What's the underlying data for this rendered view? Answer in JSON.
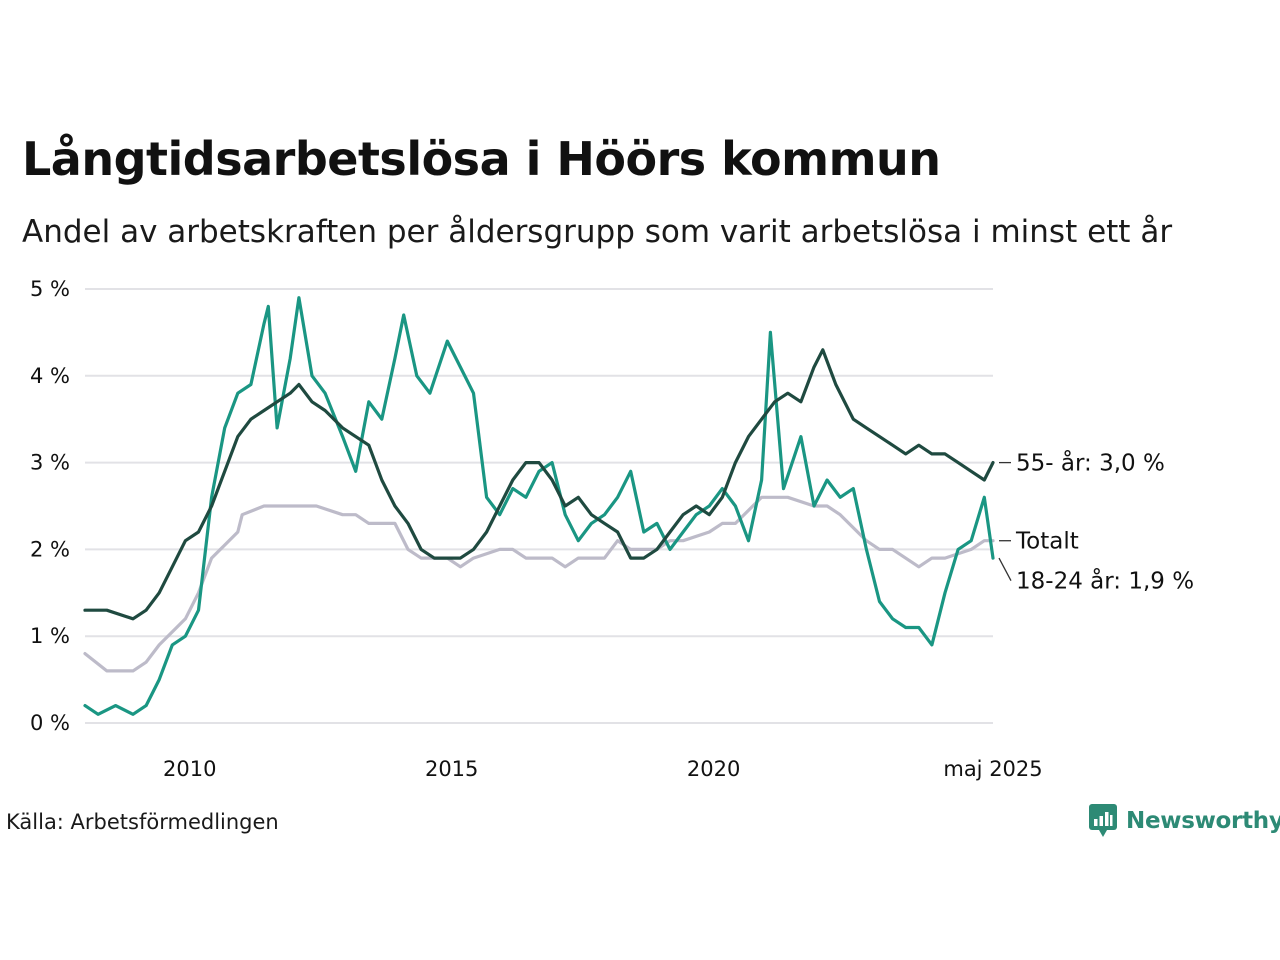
{
  "title": "Långtidsarbetslösa i Höörs kommun",
  "subtitle": "Andel av arbetskraften per åldersgrupp som varit arbetslösa i minst ett år",
  "source": "Källa: Arbetsförmedlingen",
  "brand": {
    "name": "Newsworthy",
    "icon": "newsworthy-logo-icon",
    "color": "#2d8a75"
  },
  "chart_data": {
    "type": "line",
    "title": "Långtidsarbetslösa i Höörs kommun",
    "ylabel": "",
    "xlabel": "",
    "ylim": [
      0,
      5
    ],
    "xlim": [
      "2008-01",
      "2025-05"
    ],
    "y_ticks": [
      {
        "value": 0,
        "label": "0 %"
      },
      {
        "value": 1,
        "label": "1 %"
      },
      {
        "value": 2,
        "label": "2 %"
      },
      {
        "value": 3,
        "label": "3 %"
      },
      {
        "value": 4,
        "label": "4 %"
      },
      {
        "value": 5,
        "label": "5 %"
      }
    ],
    "x_ticks": [
      {
        "value": "2010-01",
        "label": "2010"
      },
      {
        "value": "2015-01",
        "label": "2015"
      },
      {
        "value": "2020-01",
        "label": "2020"
      },
      {
        "value": "2025-05",
        "label": "maj 2025"
      }
    ],
    "grid": "horizontal",
    "series": [
      {
        "name": "Totalt",
        "color": "#bdbbc9",
        "end_label": "Totalt",
        "points": [
          [
            "2008-01",
            0.8
          ],
          [
            "2008-06",
            0.6
          ],
          [
            "2008-12",
            0.6
          ],
          [
            "2009-03",
            0.7
          ],
          [
            "2009-06",
            0.9
          ],
          [
            "2009-12",
            1.2
          ],
          [
            "2010-03",
            1.5
          ],
          [
            "2010-06",
            1.9
          ],
          [
            "2010-12",
            2.2
          ],
          [
            "2011-01",
            2.4
          ],
          [
            "2011-06",
            2.5
          ],
          [
            "2011-12",
            2.5
          ],
          [
            "2012-03",
            2.5
          ],
          [
            "2012-06",
            2.5
          ],
          [
            "2012-12",
            2.4
          ],
          [
            "2013-03",
            2.4
          ],
          [
            "2013-06",
            2.3
          ],
          [
            "2013-12",
            2.3
          ],
          [
            "2014-03",
            2.0
          ],
          [
            "2014-06",
            1.9
          ],
          [
            "2014-12",
            1.9
          ],
          [
            "2015-03",
            1.8
          ],
          [
            "2015-06",
            1.9
          ],
          [
            "2015-12",
            2.0
          ],
          [
            "2016-03",
            2.0
          ],
          [
            "2016-06",
            1.9
          ],
          [
            "2016-12",
            1.9
          ],
          [
            "2017-03",
            1.8
          ],
          [
            "2017-06",
            1.9
          ],
          [
            "2017-12",
            1.9
          ],
          [
            "2018-03",
            2.1
          ],
          [
            "2018-06",
            2.0
          ],
          [
            "2018-12",
            2.0
          ],
          [
            "2019-03",
            2.1
          ],
          [
            "2019-06",
            2.1
          ],
          [
            "2019-12",
            2.2
          ],
          [
            "2020-03",
            2.3
          ],
          [
            "2020-06",
            2.3
          ],
          [
            "2020-12",
            2.6
          ],
          [
            "2021-03",
            2.6
          ],
          [
            "2021-06",
            2.6
          ],
          [
            "2021-12",
            2.5
          ],
          [
            "2022-03",
            2.5
          ],
          [
            "2022-06",
            2.4
          ],
          [
            "2022-12",
            2.1
          ],
          [
            "2023-03",
            2.0
          ],
          [
            "2023-06",
            2.0
          ],
          [
            "2023-12",
            1.8
          ],
          [
            "2024-03",
            1.9
          ],
          [
            "2024-06",
            1.9
          ],
          [
            "2024-12",
            2.0
          ],
          [
            "2025-03",
            2.1
          ],
          [
            "2025-05",
            2.1
          ]
        ]
      },
      {
        "name": "18-24 år",
        "color": "#1a9683",
        "end_label": "18-24 år: 1,9 %",
        "points": [
          [
            "2008-01",
            0.2
          ],
          [
            "2008-04",
            0.1
          ],
          [
            "2008-08",
            0.2
          ],
          [
            "2008-12",
            0.1
          ],
          [
            "2009-03",
            0.2
          ],
          [
            "2009-06",
            0.5
          ],
          [
            "2009-09",
            0.9
          ],
          [
            "2009-12",
            1.0
          ],
          [
            "2010-03",
            1.3
          ],
          [
            "2010-06",
            2.6
          ],
          [
            "2010-09",
            3.4
          ],
          [
            "2010-12",
            3.8
          ],
          [
            "2011-03",
            3.9
          ],
          [
            "2011-06",
            4.6
          ],
          [
            "2011-07",
            4.8
          ],
          [
            "2011-09",
            3.4
          ],
          [
            "2011-12",
            4.2
          ],
          [
            "2012-02",
            4.9
          ],
          [
            "2012-05",
            4.0
          ],
          [
            "2012-08",
            3.8
          ],
          [
            "2012-12",
            3.3
          ],
          [
            "2013-03",
            2.9
          ],
          [
            "2013-06",
            3.7
          ],
          [
            "2013-09",
            3.5
          ],
          [
            "2013-12",
            4.2
          ],
          [
            "2014-02",
            4.7
          ],
          [
            "2014-05",
            4.0
          ],
          [
            "2014-08",
            3.8
          ],
          [
            "2014-12",
            4.4
          ],
          [
            "2015-03",
            4.1
          ],
          [
            "2015-06",
            3.8
          ],
          [
            "2015-09",
            2.6
          ],
          [
            "2015-12",
            2.4
          ],
          [
            "2016-03",
            2.7
          ],
          [
            "2016-06",
            2.6
          ],
          [
            "2016-09",
            2.9
          ],
          [
            "2016-12",
            3.0
          ],
          [
            "2017-03",
            2.4
          ],
          [
            "2017-06",
            2.1
          ],
          [
            "2017-09",
            2.3
          ],
          [
            "2017-12",
            2.4
          ],
          [
            "2018-03",
            2.6
          ],
          [
            "2018-06",
            2.9
          ],
          [
            "2018-09",
            2.2
          ],
          [
            "2018-12",
            2.3
          ],
          [
            "2019-03",
            2.0
          ],
          [
            "2019-06",
            2.2
          ],
          [
            "2019-09",
            2.4
          ],
          [
            "2019-12",
            2.5
          ],
          [
            "2020-03",
            2.7
          ],
          [
            "2020-06",
            2.5
          ],
          [
            "2020-09",
            2.1
          ],
          [
            "2020-12",
            2.8
          ],
          [
            "2021-02",
            4.5
          ],
          [
            "2021-05",
            2.7
          ],
          [
            "2021-09",
            3.3
          ],
          [
            "2021-12",
            2.5
          ],
          [
            "2022-03",
            2.8
          ],
          [
            "2022-06",
            2.6
          ],
          [
            "2022-09",
            2.7
          ],
          [
            "2022-12",
            2.0
          ],
          [
            "2023-03",
            1.4
          ],
          [
            "2023-06",
            1.2
          ],
          [
            "2023-09",
            1.1
          ],
          [
            "2023-12",
            1.1
          ],
          [
            "2024-03",
            0.9
          ],
          [
            "2024-06",
            1.5
          ],
          [
            "2024-09",
            2.0
          ],
          [
            "2024-12",
            2.1
          ],
          [
            "2025-03",
            2.6
          ],
          [
            "2025-05",
            1.9
          ]
        ]
      },
      {
        "name": "55- år",
        "color": "#1f4a40",
        "end_label": "55- år: 3,0 %",
        "points": [
          [
            "2008-01",
            1.3
          ],
          [
            "2008-06",
            1.3
          ],
          [
            "2008-12",
            1.2
          ],
          [
            "2009-03",
            1.3
          ],
          [
            "2009-06",
            1.5
          ],
          [
            "2009-09",
            1.8
          ],
          [
            "2009-12",
            2.1
          ],
          [
            "2010-03",
            2.2
          ],
          [
            "2010-06",
            2.5
          ],
          [
            "2010-09",
            2.9
          ],
          [
            "2010-12",
            3.3
          ],
          [
            "2011-03",
            3.5
          ],
          [
            "2011-06",
            3.6
          ],
          [
            "2011-09",
            3.7
          ],
          [
            "2011-12",
            3.8
          ],
          [
            "2012-02",
            3.9
          ],
          [
            "2012-05",
            3.7
          ],
          [
            "2012-08",
            3.6
          ],
          [
            "2012-12",
            3.4
          ],
          [
            "2013-03",
            3.3
          ],
          [
            "2013-06",
            3.2
          ],
          [
            "2013-09",
            2.8
          ],
          [
            "2013-12",
            2.5
          ],
          [
            "2014-03",
            2.3
          ],
          [
            "2014-06",
            2.0
          ],
          [
            "2014-09",
            1.9
          ],
          [
            "2014-12",
            1.9
          ],
          [
            "2015-03",
            1.9
          ],
          [
            "2015-06",
            2.0
          ],
          [
            "2015-09",
            2.2
          ],
          [
            "2015-12",
            2.5
          ],
          [
            "2016-03",
            2.8
          ],
          [
            "2016-06",
            3.0
          ],
          [
            "2016-09",
            3.0
          ],
          [
            "2016-12",
            2.8
          ],
          [
            "2017-03",
            2.5
          ],
          [
            "2017-06",
            2.6
          ],
          [
            "2017-09",
            2.4
          ],
          [
            "2017-12",
            2.3
          ],
          [
            "2018-03",
            2.2
          ],
          [
            "2018-06",
            1.9
          ],
          [
            "2018-09",
            1.9
          ],
          [
            "2018-12",
            2.0
          ],
          [
            "2019-03",
            2.2
          ],
          [
            "2019-06",
            2.4
          ],
          [
            "2019-09",
            2.5
          ],
          [
            "2019-12",
            2.4
          ],
          [
            "2020-03",
            2.6
          ],
          [
            "2020-06",
            3.0
          ],
          [
            "2020-09",
            3.3
          ],
          [
            "2020-12",
            3.5
          ],
          [
            "2021-03",
            3.7
          ],
          [
            "2021-06",
            3.8
          ],
          [
            "2021-09",
            3.7
          ],
          [
            "2021-12",
            4.1
          ],
          [
            "2022-02",
            4.3
          ],
          [
            "2022-05",
            3.9
          ],
          [
            "2022-09",
            3.5
          ],
          [
            "2022-12",
            3.4
          ],
          [
            "2023-03",
            3.3
          ],
          [
            "2023-06",
            3.2
          ],
          [
            "2023-09",
            3.1
          ],
          [
            "2023-12",
            3.2
          ],
          [
            "2024-03",
            3.1
          ],
          [
            "2024-06",
            3.1
          ],
          [
            "2024-09",
            3.0
          ],
          [
            "2024-12",
            2.9
          ],
          [
            "2025-03",
            2.8
          ],
          [
            "2025-05",
            3.0
          ]
        ]
      }
    ]
  }
}
